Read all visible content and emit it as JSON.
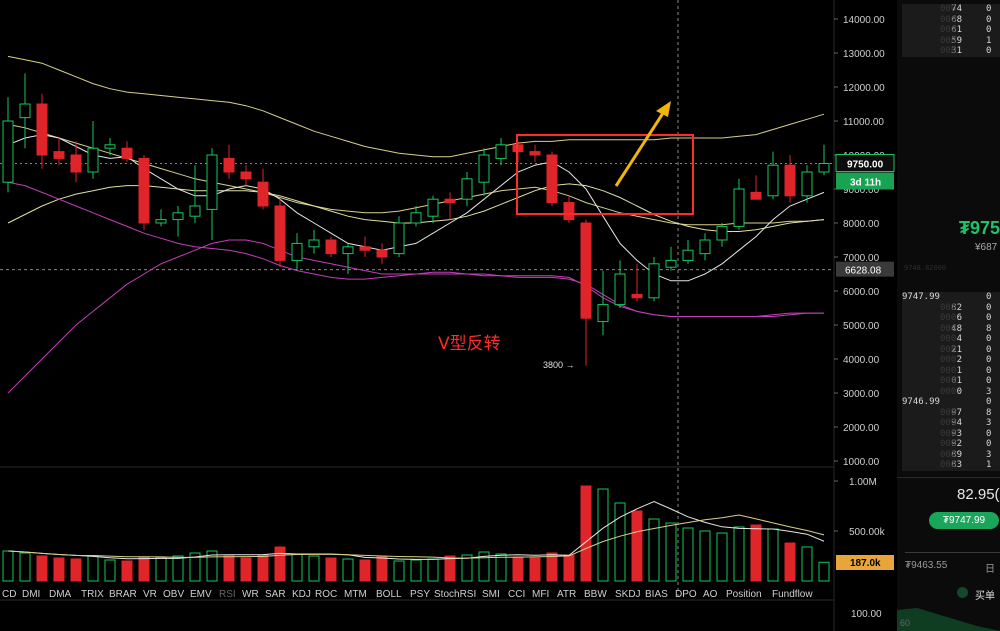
{
  "chart_data": {
    "type": "candlestick",
    "price_axis": {
      "ticks": [
        "14000.00",
        "13000.00",
        "12000.00",
        "11000.00",
        "10000.00",
        "9000.00",
        "8000.00",
        "7000.00",
        "6000.00",
        "5000.00",
        "4000.00",
        "3000.00",
        "2000.00",
        "1000.00"
      ],
      "range": [
        800,
        14400
      ],
      "current_price_label": "9750.00",
      "countdown_label": "3d 11h",
      "reference_price_label": "6628.08",
      "reference_price": 6628.08,
      "current_price": 9750
    },
    "candles": [
      {
        "o": 9200,
        "h": 11700,
        "l": 8900,
        "c": 11000
      },
      {
        "o": 11100,
        "h": 12400,
        "l": 10200,
        "c": 11500
      },
      {
        "o": 11500,
        "h": 11800,
        "l": 9600,
        "c": 10000
      },
      {
        "o": 10100,
        "h": 10500,
        "l": 9700,
        "c": 9900
      },
      {
        "o": 10000,
        "h": 10400,
        "l": 9200,
        "c": 9500
      },
      {
        "o": 9500,
        "h": 11000,
        "l": 9300,
        "c": 10200
      },
      {
        "o": 10200,
        "h": 10500,
        "l": 10000,
        "c": 10300
      },
      {
        "o": 10200,
        "h": 10400,
        "l": 9800,
        "c": 9900
      },
      {
        "o": 9900,
        "h": 10000,
        "l": 7800,
        "c": 8000
      },
      {
        "o": 8000,
        "h": 8400,
        "l": 7900,
        "c": 8100
      },
      {
        "o": 8100,
        "h": 8500,
        "l": 7600,
        "c": 8300
      },
      {
        "o": 8200,
        "h": 9700,
        "l": 8000,
        "c": 8500
      },
      {
        "o": 8400,
        "h": 10200,
        "l": 7500,
        "c": 10000
      },
      {
        "o": 9900,
        "h": 10300,
        "l": 9300,
        "c": 9500
      },
      {
        "o": 9500,
        "h": 9700,
        "l": 9100,
        "c": 9300
      },
      {
        "o": 9200,
        "h": 9600,
        "l": 8400,
        "c": 8500
      },
      {
        "o": 8500,
        "h": 8700,
        "l": 6700,
        "c": 6900
      },
      {
        "o": 6900,
        "h": 7700,
        "l": 6600,
        "c": 7400
      },
      {
        "o": 7300,
        "h": 7800,
        "l": 7100,
        "c": 7500
      },
      {
        "o": 7500,
        "h": 7600,
        "l": 7000,
        "c": 7100
      },
      {
        "o": 7100,
        "h": 7400,
        "l": 6500,
        "c": 7300
      },
      {
        "o": 7300,
        "h": 7600,
        "l": 7000,
        "c": 7200
      },
      {
        "o": 7200,
        "h": 7400,
        "l": 6800,
        "c": 7000
      },
      {
        "o": 7100,
        "h": 8200,
        "l": 7000,
        "c": 8000
      },
      {
        "o": 8000,
        "h": 8500,
        "l": 7900,
        "c": 8300
      },
      {
        "o": 8200,
        "h": 8800,
        "l": 8000,
        "c": 8700
      },
      {
        "o": 8700,
        "h": 8900,
        "l": 8100,
        "c": 8600
      },
      {
        "o": 8700,
        "h": 9500,
        "l": 8500,
        "c": 9300
      },
      {
        "o": 9200,
        "h": 10200,
        "l": 8800,
        "c": 10000
      },
      {
        "o": 9900,
        "h": 10500,
        "l": 9700,
        "c": 10300
      },
      {
        "o": 10300,
        "h": 10400,
        "l": 9800,
        "c": 10100
      },
      {
        "o": 10100,
        "h": 10300,
        "l": 9800,
        "c": 10000
      },
      {
        "o": 10000,
        "h": 10100,
        "l": 8500,
        "c": 8600
      },
      {
        "o": 8600,
        "h": 8800,
        "l": 8000,
        "c": 8100
      },
      {
        "o": 8000,
        "h": 8100,
        "l": 3800,
        "c": 5200
      },
      {
        "o": 5100,
        "h": 6600,
        "l": 4700,
        "c": 5600
      },
      {
        "o": 5600,
        "h": 6900,
        "l": 5500,
        "c": 6500
      },
      {
        "o": 5900,
        "h": 6800,
        "l": 5700,
        "c": 5800
      },
      {
        "o": 5800,
        "h": 7000,
        "l": 5700,
        "c": 6800
      },
      {
        "o": 6700,
        "h": 7300,
        "l": 6600,
        "c": 6900
      },
      {
        "o": 6900,
        "h": 7500,
        "l": 6800,
        "c": 7200
      },
      {
        "o": 7100,
        "h": 7700,
        "l": 6900,
        "c": 7500
      },
      {
        "o": 7500,
        "h": 8000,
        "l": 7300,
        "c": 7900
      },
      {
        "o": 7900,
        "h": 9300,
        "l": 7800,
        "c": 9000
      },
      {
        "o": 8900,
        "h": 9400,
        "l": 8700,
        "c": 8700
      },
      {
        "o": 8800,
        "h": 10100,
        "l": 8700,
        "c": 9700
      },
      {
        "o": 9700,
        "h": 10000,
        "l": 8600,
        "c": 8800
      },
      {
        "o": 8800,
        "h": 9700,
        "l": 8600,
        "c": 9500
      },
      {
        "o": 9500,
        "h": 10300,
        "l": 9400,
        "c": 9750
      }
    ],
    "bollinger_upper": [
      12900,
      12800,
      12700,
      12500,
      12300,
      12100,
      11950,
      11850,
      11800,
      11750,
      11700,
      11650,
      11600,
      11550,
      11450,
      11300,
      11100,
      10900,
      10700,
      10550,
      10400,
      10250,
      10150,
      10050,
      10000,
      9950,
      9950,
      10050,
      10150,
      10250,
      10350,
      10400,
      10400,
      10450,
      10450,
      10450,
      10450,
      10450,
      10450,
      10500,
      10500,
      10500,
      10500,
      10550,
      10600,
      10750,
      10900,
      11050,
      11200
    ],
    "bollinger_mid": [
      10900,
      10800,
      10650,
      10500,
      10350,
      10200,
      10050,
      9900,
      9750,
      9600,
      9450,
      9300,
      9200,
      9100,
      9000,
      8900,
      8750,
      8600,
      8500,
      8400,
      8350,
      8300,
      8300,
      8350,
      8450,
      8550,
      8650,
      8750,
      8850,
      8950,
      9000,
      9050,
      8950,
      8800,
      8600,
      8450,
      8300,
      8200,
      8100,
      8000,
      7950,
      7950,
      7950,
      8000,
      8000,
      8000,
      8050,
      8050,
      8100
    ],
    "bollinger_lower": [
      9200,
      9100,
      8900,
      8700,
      8500,
      8300,
      8100,
      7900,
      7700,
      7550,
      7400,
      7300,
      7250,
      7200,
      7100,
      6950,
      6750,
      6600,
      6500,
      6400,
      6350,
      6350,
      6400,
      6450,
      6500,
      6550,
      6550,
      6500,
      6450,
      6450,
      6450,
      6450,
      6450,
      6400,
      6150,
      5800,
      5550,
      5400,
      5300,
      5250,
      5250,
      5250,
      5250,
      5250,
      5250,
      5250,
      5300,
      5350,
      5350
    ],
    "ma_fast": [
      10300,
      10500,
      10600,
      10500,
      10250,
      10000,
      9900,
      9950,
      9600,
      9300,
      9000,
      8800,
      8800,
      9000,
      9100,
      9000,
      8700,
      8300,
      8000,
      7700,
      7400,
      7300,
      7200,
      7300,
      7400,
      7700,
      8000,
      8300,
      8700,
      9100,
      9500,
      9700,
      9800,
      9500,
      9000,
      8200,
      7400,
      6900,
      6500,
      6300,
      6300,
      6500,
      6800,
      7200,
      7600,
      8100,
      8500,
      8700,
      8900
    ],
    "ma_slow": [
      8000,
      8250,
      8500,
      8700,
      8850,
      8950,
      9050,
      9100,
      9100,
      9050,
      9000,
      8950,
      8950,
      8950,
      8950,
      8900,
      8800,
      8650,
      8500,
      8350,
      8200,
      8100,
      8050,
      8000,
      8000,
      8050,
      8100,
      8200,
      8350,
      8550,
      8750,
      8950,
      9100,
      9150,
      9100,
      8950,
      8750,
      8500,
      8250,
      8050,
      7900,
      7800,
      7750,
      7750,
      7800,
      7900,
      8000,
      8050,
      8100
    ],
    "ma_pink": [
      3000,
      3500,
      4000,
      4500,
      5000,
      5400,
      5800,
      6200,
      6500,
      6800,
      7000,
      7200,
      7400,
      7500,
      7500,
      7400,
      7200,
      7000,
      6900,
      6800,
      6700,
      6600,
      6500,
      6500,
      6500,
      6500,
      6500,
      6500,
      6500,
      6450,
      6400,
      6400,
      6400,
      6350,
      6200,
      5900,
      5600,
      5400,
      5300,
      5250,
      5250,
      5250,
      5250,
      5250,
      5250,
      5300,
      5350,
      5350,
      5350
    ],
    "volume_axis": {
      "ticks": [
        "1.00M",
        "500.00k"
      ],
      "range": [
        0,
        1050000
      ],
      "current_label": "187.0k",
      "current": 187000
    },
    "volume": [
      300000,
      280000,
      250000,
      230000,
      220000,
      250000,
      210000,
      200000,
      240000,
      230000,
      250000,
      280000,
      300000,
      250000,
      230000,
      260000,
      340000,
      270000,
      250000,
      230000,
      220000,
      210000,
      240000,
      200000,
      210000,
      220000,
      250000,
      260000,
      290000,
      270000,
      240000,
      230000,
      280000,
      260000,
      950000,
      920000,
      780000,
      700000,
      620000,
      580000,
      530000,
      500000,
      480000,
      540000,
      560000,
      520000,
      380000,
      340000,
      187000
    ],
    "oscillator_axis": {
      "ticks": [
        "100.00"
      ]
    },
    "annotations": {
      "pattern_label": "V型反转",
      "low_label": "3800 →"
    },
    "indicator_tabs": [
      "CD",
      "DMI",
      "DMA",
      "TRIX",
      "BRAR",
      "VR",
      "OBV",
      "EMV",
      "RSI",
      "WR",
      "SAR",
      "KDJ",
      "ROC",
      "MTM",
      "BOLL",
      "PSY",
      "StochRSI",
      "SMI",
      "CCI",
      "MFI",
      "ATR",
      "BBW",
      "SKDJ",
      "BIAS",
      "DPO",
      "AO",
      "Position",
      "Fundflow"
    ],
    "colors": {
      "up": "#16c75f",
      "down": "#e0252a",
      "boll_upper": "#d8d08a",
      "boll_mid": "#cfcfcf",
      "pink": "#c23fb8",
      "highlight_box": "#ff2a2a",
      "arrow": "#f2b705"
    }
  },
  "order_book": {
    "asks": [
      {
        "q": "74",
        "c": "0"
      },
      {
        "q": "68",
        "c": "0"
      },
      {
        "q": "61",
        "c": "0"
      },
      {
        "q": "59",
        "c": "1"
      },
      {
        "q": "31",
        "c": "0"
      }
    ],
    "bid_header": "9747.99",
    "bids": [
      {
        "q": "82",
        "c": "0"
      },
      {
        "q": "6",
        "c": "0"
      },
      {
        "q": "48",
        "c": "8"
      },
      {
        "q": "4",
        "c": "0"
      },
      {
        "q": "21",
        "c": "0"
      },
      {
        "q": "2",
        "c": "0"
      },
      {
        "q": "1",
        "c": "0"
      },
      {
        "q": "01",
        "c": "0"
      },
      {
        "q": "0",
        "c": "3"
      }
    ],
    "bid_header2": "9746.99",
    "bids2": [
      {
        "q": "97",
        "c": "8"
      },
      {
        "q": "94",
        "c": "3"
      },
      {
        "q": "93",
        "c": "0"
      },
      {
        "q": "92",
        "c": "0"
      },
      {
        "q": "89",
        "c": "3"
      },
      {
        "q": "83",
        "c": "1"
      }
    ],
    "big_price": "₮975",
    "sub_price": "¥687",
    "ghost_price": "9748.82000"
  },
  "trade_panel": {
    "value": "82.95(",
    "pill": "₮9747.99",
    "low_price": "₮9463.55",
    "day_label": "日",
    "buy_label": "买单",
    "corner": "60"
  }
}
